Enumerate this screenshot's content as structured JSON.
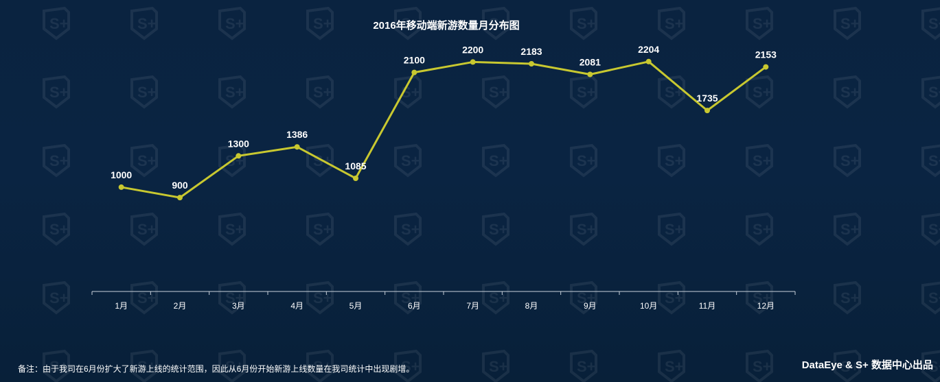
{
  "title": "2016年移动端新游数量月分布图",
  "footnote": "备注：由于我司在6月份扩大了新游上线的统计范围，因此从6月份开始新游上线数量在我司统计中出现剧增。",
  "credit": "DataEye & S+ 数据中心出品",
  "watermark_text": "S+",
  "colors": {
    "background": "#07203c",
    "line": "#c8c830",
    "text": "#ffffff",
    "axis": "#c9d2dc"
  },
  "chart_data": {
    "type": "line",
    "title": "2016年移动端新游数量月分布图",
    "categories": [
      "1月",
      "2月",
      "3月",
      "4月",
      "5月",
      "6月",
      "7月",
      "8月",
      "9月",
      "10月",
      "11月",
      "12月"
    ],
    "values": [
      1000,
      900,
      1300,
      1386,
      1085,
      2100,
      2200,
      2183,
      2081,
      2204,
      1735,
      2153
    ],
    "data_labels": [
      "1000",
      "900",
      "1300",
      "1386",
      "1085",
      "2100",
      "2200",
      "2183",
      "2081",
      "2204",
      "1735",
      "2153"
    ],
    "xlabel": "",
    "ylabel": "",
    "ylim": [
      0,
      2400
    ],
    "grid": false,
    "legend": "none"
  }
}
